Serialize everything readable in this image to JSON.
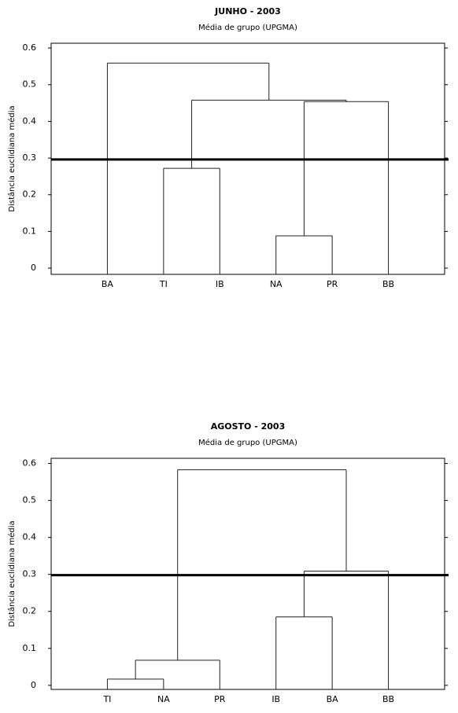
{
  "chart_data": [
    {
      "type": "dendrogram",
      "title": "JUNHO - 2003",
      "subtitle": "Média de grupo (UPGMA)",
      "y_label": "Distância euclidiana média",
      "categories": [
        "BA",
        "TI",
        "IB",
        "NA",
        "PR",
        "BB"
      ],
      "merges": [
        {
          "members": [
            "NA",
            "PR"
          ],
          "height": 0.088
        },
        {
          "members": [
            "TI",
            "IB"
          ],
          "height": 0.272
        },
        {
          "members": [
            "NA",
            "PR",
            "BB"
          ],
          "height": 0.454
        },
        {
          "members": [
            "TI",
            "IB",
            "NA",
            "PR",
            "BB"
          ],
          "height": 0.458
        },
        {
          "members": [
            "BA",
            "TI",
            "IB",
            "NA",
            "PR",
            "BB"
          ],
          "height": 0.559
        }
      ],
      "cut": 0.296,
      "color": "#222222",
      "ylim": [
        -0.017,
        0.613
      ],
      "yticks": [
        0,
        0.1,
        0.2,
        0.3,
        0.4,
        0.5,
        0.6
      ]
    },
    {
      "type": "dendrogram",
      "title": "AGOSTO - 2003",
      "subtitle": "Média de grupo (UPGMA)",
      "y_label": "Distância euclidiana média",
      "categories": [
        "TI",
        "NA",
        "PR",
        "IB",
        "BA",
        "BB"
      ],
      "merges": [
        {
          "members": [
            "TI",
            "NA"
          ],
          "height": 0.017
        },
        {
          "members": [
            "TI",
            "NA",
            "PR"
          ],
          "height": 0.068
        },
        {
          "members": [
            "IB",
            "BA"
          ],
          "height": 0.185
        },
        {
          "members": [
            "IB",
            "BA",
            "BB"
          ],
          "height": 0.309
        },
        {
          "members": [
            "TI",
            "NA",
            "PR",
            "IB",
            "BA",
            "BB"
          ],
          "height": 0.583
        }
      ],
      "cut": 0.298,
      "color": "#222222",
      "ylim": [
        -0.011,
        0.614
      ],
      "yticks": [
        0,
        0.1,
        0.2,
        0.3,
        0.4,
        0.5,
        0.6
      ]
    }
  ]
}
